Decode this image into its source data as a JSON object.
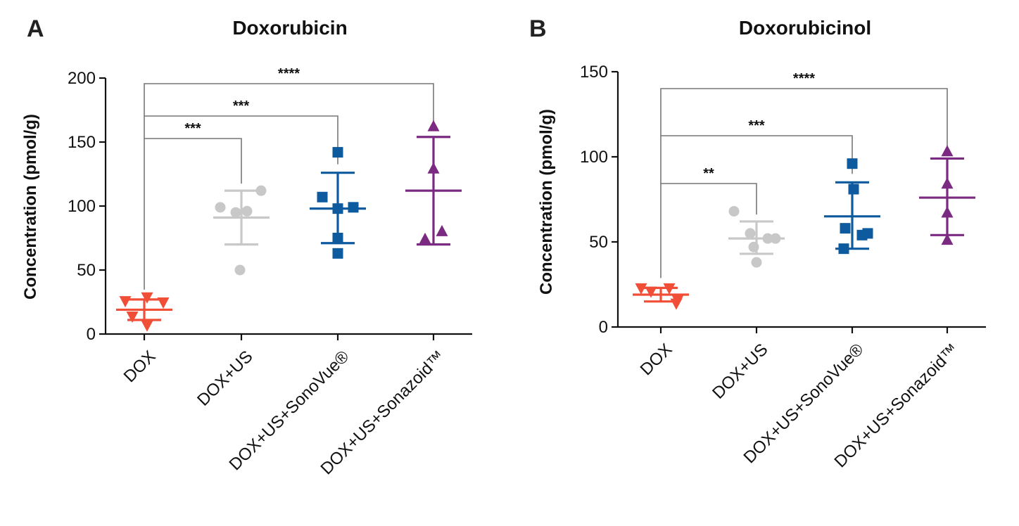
{
  "chart_data": [
    {
      "panel": "A",
      "type": "scatter",
      "title": "Doxorubicin",
      "ylabel": "Concentration (pmol/g)",
      "ylim": [
        0,
        200
      ],
      "yticks": [
        0,
        50,
        100,
        150,
        200
      ],
      "categories": [
        "DOX",
        "DOX+US",
        "DOX+US+SonoVue®",
        "DOX+US+Sonazoid™"
      ],
      "groups": [
        {
          "name": "DOX",
          "color": "#F04E37",
          "marker": "triangle-down",
          "points": [
            26,
            29,
            14,
            7,
            25
          ],
          "mean": 19,
          "sd_low": 11,
          "sd_high": 27
        },
        {
          "name": "DOX+US",
          "color": "#C8C8C8",
          "marker": "circle",
          "points": [
            99,
            95,
            96,
            112,
            50
          ],
          "mean": 91,
          "sd_low": 70,
          "sd_high": 112
        },
        {
          "name": "DOX+US+SonoVue®",
          "color": "#0E5A9E",
          "marker": "square",
          "points": [
            107,
            142,
            98,
            99,
            75,
            63
          ],
          "mean": 98,
          "sd_low": 71,
          "sd_high": 126
        },
        {
          "name": "DOX+US+Sonazoid™",
          "color": "#7B2A82",
          "marker": "triangle-up",
          "points": [
            162,
            129,
            80,
            74
          ],
          "mean": 112,
          "sd_low": 70,
          "sd_high": 154
        }
      ],
      "significance": [
        {
          "from": "DOX",
          "to": "DOX+US",
          "label": "***"
        },
        {
          "from": "DOX",
          "to": "DOX+US+SonoVue®",
          "label": "***"
        },
        {
          "from": "DOX",
          "to": "DOX+US+Sonazoid™",
          "label": "****"
        }
      ]
    },
    {
      "panel": "B",
      "type": "scatter",
      "title": "Doxorubicinol",
      "ylabel": "Concentration (pmol/g)",
      "ylim": [
        0,
        150
      ],
      "yticks": [
        0,
        50,
        100,
        150
      ],
      "categories": [
        "DOX",
        "DOX+US",
        "DOX+US+SonoVue®",
        "DOX+US+Sonazoid™"
      ],
      "groups": [
        {
          "name": "DOX",
          "color": "#F04E37",
          "marker": "triangle-down",
          "points": [
            23,
            21,
            23,
            14,
            16
          ],
          "mean": 19,
          "sd_low": 15,
          "sd_high": 23
        },
        {
          "name": "DOX+US",
          "color": "#C8C8C8",
          "marker": "circle",
          "points": [
            68,
            55,
            52,
            52,
            47,
            38
          ],
          "mean": 52,
          "sd_low": 43,
          "sd_high": 62
        },
        {
          "name": "DOX+US+SonoVue®",
          "color": "#0E5A9E",
          "marker": "square",
          "points": [
            96,
            81,
            58,
            54,
            55,
            46
          ],
          "mean": 65,
          "sd_low": 46,
          "sd_high": 85
        },
        {
          "name": "DOX+US+Sonazoid™",
          "color": "#7B2A82",
          "marker": "triangle-up",
          "points": [
            103,
            84,
            67,
            51
          ],
          "mean": 76,
          "sd_low": 54,
          "sd_high": 99
        }
      ],
      "significance": [
        {
          "from": "DOX",
          "to": "DOX+US",
          "label": "**"
        },
        {
          "from": "DOX",
          "to": "DOX+US+SonoVue®",
          "label": "***"
        },
        {
          "from": "DOX",
          "to": "DOX+US+Sonazoid™",
          "label": "****"
        }
      ]
    }
  ]
}
